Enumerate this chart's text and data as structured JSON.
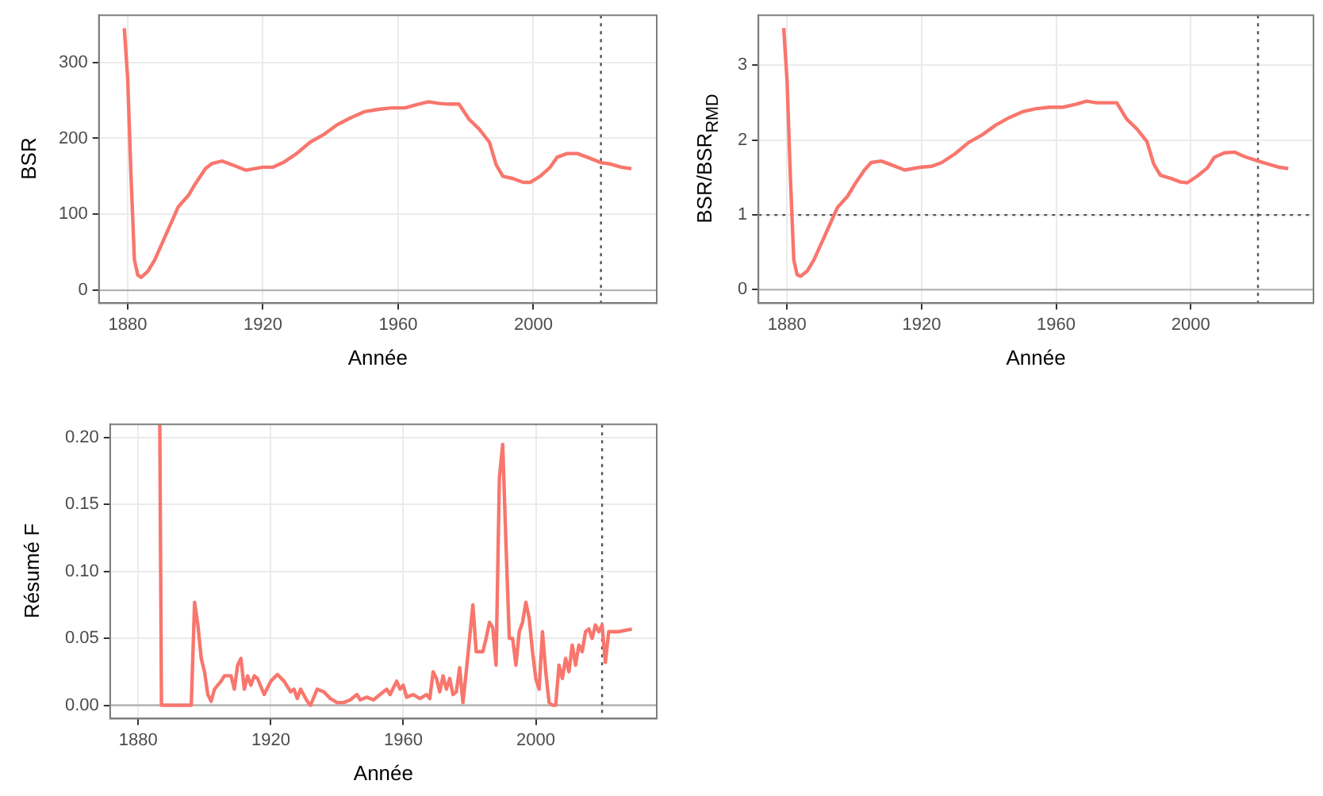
{
  "chart_data": [
    {
      "type": "line",
      "xlabel": "Année",
      "ylabel": "BSR",
      "color": "#f8766d",
      "grid": true,
      "x": [
        1879,
        1880,
        1881,
        1882,
        1883,
        1884,
        1886,
        1888,
        1890,
        1893,
        1895,
        1898,
        1900,
        1903,
        1905,
        1908,
        1911,
        1915,
        1920,
        1923,
        1926,
        1930,
        1934,
        1938,
        1942,
        1946,
        1950,
        1954,
        1958,
        1962,
        1966,
        1969,
        1972,
        1975,
        1978,
        1981,
        1984,
        1987,
        1989,
        1991,
        1994,
        1997,
        1999,
        2002,
        2005,
        2007,
        2010,
        2013,
        2016,
        2020,
        2023,
        2026,
        2029
      ],
      "values": [
        345,
        280,
        150,
        40,
        20,
        17,
        25,
        40,
        60,
        90,
        110,
        125,
        140,
        160,
        167,
        170,
        165,
        158,
        162,
        162,
        168,
        180,
        195,
        205,
        218,
        227,
        235,
        238,
        240,
        240,
        245,
        248,
        246,
        245,
        245,
        225,
        212,
        195,
        165,
        150,
        147,
        142,
        142,
        150,
        162,
        175,
        180,
        180,
        175,
        168,
        166,
        162,
        160
      ],
      "xlim": [
        1871.5,
        2036.5
      ],
      "ylim": [
        -17,
        362
      ],
      "xticks": [
        1880,
        1920,
        1960,
        2000
      ],
      "yticks": [
        0,
        100,
        200,
        300
      ],
      "ref_lines": [
        {
          "axis": "y",
          "value": 0,
          "color": "#b3b3b3",
          "line_style": "solid"
        },
        {
          "axis": "x",
          "value": 2020,
          "color": "#555555",
          "line_style": "dotted"
        }
      ]
    },
    {
      "type": "line",
      "xlabel": "Année",
      "ylabel": "BSR/BSR$_{RMD}$",
      "color": "#f8766d",
      "grid": true,
      "x": [
        1879,
        1880,
        1881,
        1882,
        1883,
        1884,
        1886,
        1888,
        1890,
        1893,
        1895,
        1898,
        1900,
        1903,
        1905,
        1908,
        1911,
        1915,
        1920,
        1923,
        1926,
        1930,
        1934,
        1938,
        1942,
        1946,
        1950,
        1954,
        1958,
        1962,
        1966,
        1969,
        1972,
        1975,
        1978,
        1981,
        1984,
        1987,
        1989,
        1991,
        1994,
        1997,
        1999,
        2002,
        2005,
        2007,
        2010,
        2013,
        2016,
        2020,
        2023,
        2026,
        2029
      ],
      "values": [
        3.5,
        2.8,
        1.5,
        0.4,
        0.2,
        0.18,
        0.25,
        0.4,
        0.6,
        0.9,
        1.1,
        1.25,
        1.4,
        1.6,
        1.7,
        1.72,
        1.67,
        1.6,
        1.64,
        1.65,
        1.7,
        1.82,
        1.97,
        2.07,
        2.2,
        2.3,
        2.38,
        2.42,
        2.44,
        2.44,
        2.48,
        2.52,
        2.5,
        2.5,
        2.5,
        2.28,
        2.15,
        1.98,
        1.68,
        1.53,
        1.49,
        1.44,
        1.43,
        1.52,
        1.63,
        1.77,
        1.83,
        1.84,
        1.78,
        1.72,
        1.68,
        1.64,
        1.62
      ],
      "xlim": [
        1871.5,
        2036.5
      ],
      "ylim": [
        -0.18,
        3.67
      ],
      "xticks": [
        1880,
        1920,
        1960,
        2000
      ],
      "yticks": [
        0,
        1,
        2,
        3
      ],
      "ref_lines": [
        {
          "axis": "y",
          "value": 0,
          "color": "#b3b3b3",
          "line_style": "solid"
        },
        {
          "axis": "y",
          "value": 1,
          "color": "#555555",
          "line_style": "dotted"
        },
        {
          "axis": "x",
          "value": 2020,
          "color": "#555555",
          "line_style": "dotted"
        }
      ]
    },
    {
      "type": "line",
      "xlabel": "Année",
      "ylabel": "Résumé F",
      "color": "#f8766d",
      "grid": true,
      "x": [
        1886.5,
        1887,
        1896,
        1897,
        1898,
        1899,
        1900,
        1901,
        1902,
        1903,
        1905,
        1906,
        1908,
        1909,
        1910,
        1911,
        1912,
        1913,
        1914,
        1915,
        1916,
        1918,
        1920,
        1922,
        1924,
        1926,
        1927,
        1928,
        1929,
        1931,
        1932,
        1934,
        1936,
        1938,
        1940,
        1942,
        1944,
        1946,
        1947,
        1949,
        1951,
        1953,
        1955,
        1956,
        1958,
        1959,
        1960,
        1961,
        1963,
        1965,
        1967,
        1968,
        1969,
        1970,
        1971,
        1972,
        1973,
        1974,
        1975,
        1976,
        1977,
        1978,
        1979,
        1980,
        1981,
        1982,
        1984,
        1985,
        1986,
        1987,
        1988,
        1989,
        1990,
        1991,
        1992,
        1993,
        1994,
        1995,
        1996,
        1997,
        1998,
        1999,
        2000,
        2001,
        2002,
        2003,
        2004,
        2005,
        2006,
        2007,
        2008,
        2009,
        2010,
        2011,
        2012,
        2013,
        2014,
        2015,
        2016,
        2017,
        2018,
        2019,
        2020,
        2021,
        2022,
        2025,
        2029
      ],
      "values": [
        0.21,
        0,
        0,
        0.077,
        0.06,
        0.035,
        0.025,
        0.008,
        0.003,
        0.012,
        0.018,
        0.022,
        0.022,
        0.012,
        0.03,
        0.035,
        0.012,
        0.022,
        0.015,
        0.022,
        0.02,
        0.008,
        0.018,
        0.023,
        0.018,
        0.01,
        0.012,
        0.005,
        0.012,
        0.003,
        0,
        0.012,
        0.01,
        0.005,
        0.002,
        0.002,
        0.004,
        0.008,
        0.004,
        0.006,
        0.004,
        0.008,
        0.012,
        0.008,
        0.018,
        0.012,
        0.015,
        0.006,
        0.008,
        0.005,
        0.008,
        0.005,
        0.025,
        0.02,
        0.01,
        0.022,
        0.012,
        0.02,
        0.008,
        0.01,
        0.028,
        0.002,
        0.025,
        0.05,
        0.075,
        0.04,
        0.04,
        0.05,
        0.062,
        0.058,
        0.03,
        0.17,
        0.195,
        0.12,
        0.05,
        0.05,
        0.03,
        0.055,
        0.062,
        0.077,
        0.065,
        0.04,
        0.02,
        0.012,
        0.055,
        0.025,
        0.002,
        0,
        0,
        0.03,
        0.02,
        0.035,
        0.025,
        0.045,
        0.03,
        0.045,
        0.04,
        0.055,
        0.057,
        0.05,
        0.06,
        0.055,
        0.06,
        0.032,
        0.055,
        0.055,
        0.057
      ],
      "xlim": [
        1871.5,
        2036.5
      ],
      "ylim": [
        -0.01,
        0.21
      ],
      "xticks": [
        1880,
        1920,
        1960,
        2000
      ],
      "yticks": [
        {
          "value": 0,
          "label": "0.00"
        },
        {
          "value": 0.05,
          "label": "0.05"
        },
        {
          "value": 0.1,
          "label": "0.10"
        },
        {
          "value": 0.15,
          "label": "0.15"
        },
        {
          "value": 0.2,
          "label": "0.20"
        }
      ],
      "ref_lines": [
        {
          "axis": "y",
          "value": 0,
          "color": "#b3b3b3",
          "line_style": "solid"
        },
        {
          "axis": "x",
          "value": 2020,
          "color": "#555555",
          "line_style": "dotted"
        }
      ]
    }
  ]
}
